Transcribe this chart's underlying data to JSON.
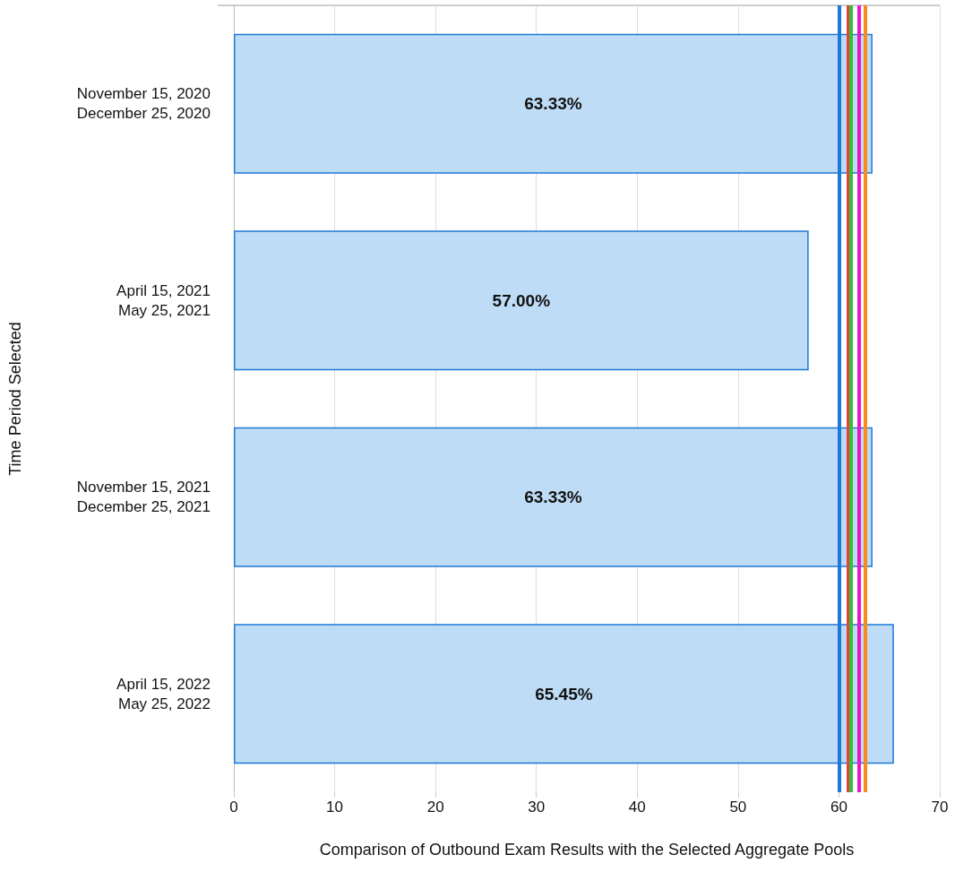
{
  "chart_data": {
    "type": "bar",
    "orientation": "horizontal",
    "xlabel": "Comparison of Outbound Exam Results with the Selected Aggregate Pools",
    "ylabel": "Time Period Selected",
    "categories": [
      "November 15, 2020\nDecember 25, 2020",
      "April 15, 2021\nMay 25, 2021",
      "November 15, 2021\nDecember 25, 2021",
      "April 15, 2022\nMay 25, 2022"
    ],
    "values": [
      63.33,
      57.0,
      63.33,
      65.45
    ],
    "value_labels": [
      "63.33%",
      "57.00%",
      "63.33%",
      "65.45%"
    ],
    "color": "#bedcf5",
    "xlim": [
      0,
      70
    ],
    "xticks": [
      0,
      10,
      20,
      30,
      40,
      50,
      60,
      70
    ],
    "grid": "x",
    "ref_lines": [
      {
        "axis": "x",
        "value": 60.0,
        "color": "#1e78d7"
      },
      {
        "axis": "x",
        "value": 60.9,
        "color": "#e8413a"
      },
      {
        "axis": "x",
        "value": 61.2,
        "color": "#2fc03c"
      },
      {
        "axis": "x",
        "value": 62.0,
        "color": "#e817c8"
      },
      {
        "axis": "x",
        "value": 62.6,
        "color": "#fb8a1c"
      }
    ]
  }
}
